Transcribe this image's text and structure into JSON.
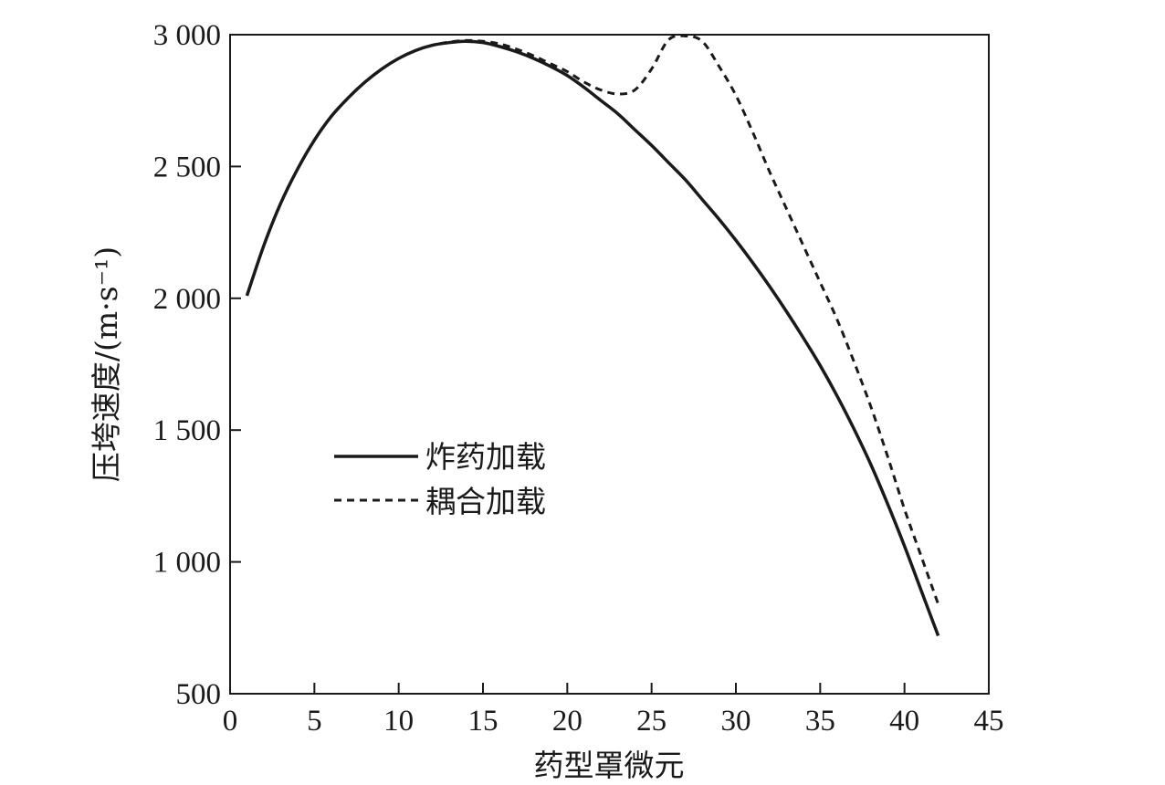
{
  "chart_data": {
    "type": "line",
    "xlabel": "药型罩微元",
    "ylabel": "压垮速度/(m·s⁻¹)",
    "xlim": [
      0,
      45
    ],
    "ylim": [
      500,
      3000
    ],
    "xticks": [
      0,
      5,
      10,
      15,
      20,
      25,
      30,
      35,
      40,
      45
    ],
    "yticks": [
      500,
      1000,
      1500,
      2000,
      2500,
      3000
    ],
    "xtick_labels": [
      "0",
      "5",
      "10",
      "15",
      "20",
      "25",
      "30",
      "35",
      "40",
      "45"
    ],
    "ytick_labels": [
      "500",
      "1 000",
      "1 500",
      "2 000",
      "2 500",
      "3 000"
    ],
    "grid": false,
    "legend_position": "center-left",
    "series": [
      {
        "name": "炸药加载",
        "style": "solid",
        "color": "#1a1a1a",
        "x": [
          1,
          2,
          3,
          4,
          5,
          6,
          7,
          8,
          9,
          10,
          11,
          12,
          13,
          14,
          15,
          16,
          17,
          18,
          19,
          20,
          21,
          22,
          23,
          24,
          25,
          26,
          27,
          28,
          29,
          30,
          31,
          32,
          33,
          34,
          35,
          36,
          37,
          38,
          39,
          40,
          41,
          42
        ],
        "y": [
          2010,
          2200,
          2360,
          2490,
          2600,
          2690,
          2760,
          2820,
          2870,
          2910,
          2940,
          2960,
          2970,
          2975,
          2970,
          2955,
          2935,
          2910,
          2880,
          2845,
          2800,
          2750,
          2700,
          2640,
          2580,
          2515,
          2450,
          2375,
          2300,
          2220,
          2135,
          2045,
          1950,
          1850,
          1745,
          1630,
          1505,
          1370,
          1220,
          1060,
          890,
          720
        ]
      },
      {
        "name": "耦合加载",
        "style": "dashed",
        "color": "#1a1a1a",
        "x": [
          1,
          2,
          3,
          4,
          5,
          6,
          7,
          8,
          9,
          10,
          11,
          12,
          13,
          14,
          15,
          16,
          17,
          18,
          19,
          20,
          21,
          22,
          23,
          24,
          25,
          26,
          27,
          28,
          29,
          30,
          31,
          32,
          33,
          34,
          35,
          36,
          37,
          38,
          39,
          40,
          41,
          42
        ],
        "y": [
          2010,
          2200,
          2360,
          2490,
          2600,
          2690,
          2760,
          2820,
          2870,
          2910,
          2940,
          2960,
          2972,
          2978,
          2975,
          2965,
          2945,
          2920,
          2890,
          2860,
          2820,
          2790,
          2775,
          2790,
          2870,
          2980,
          2995,
          2975,
          2880,
          2770,
          2630,
          2480,
          2340,
          2200,
          2060,
          1920,
          1760,
          1590,
          1400,
          1200,
          1020,
          840
        ]
      }
    ]
  }
}
